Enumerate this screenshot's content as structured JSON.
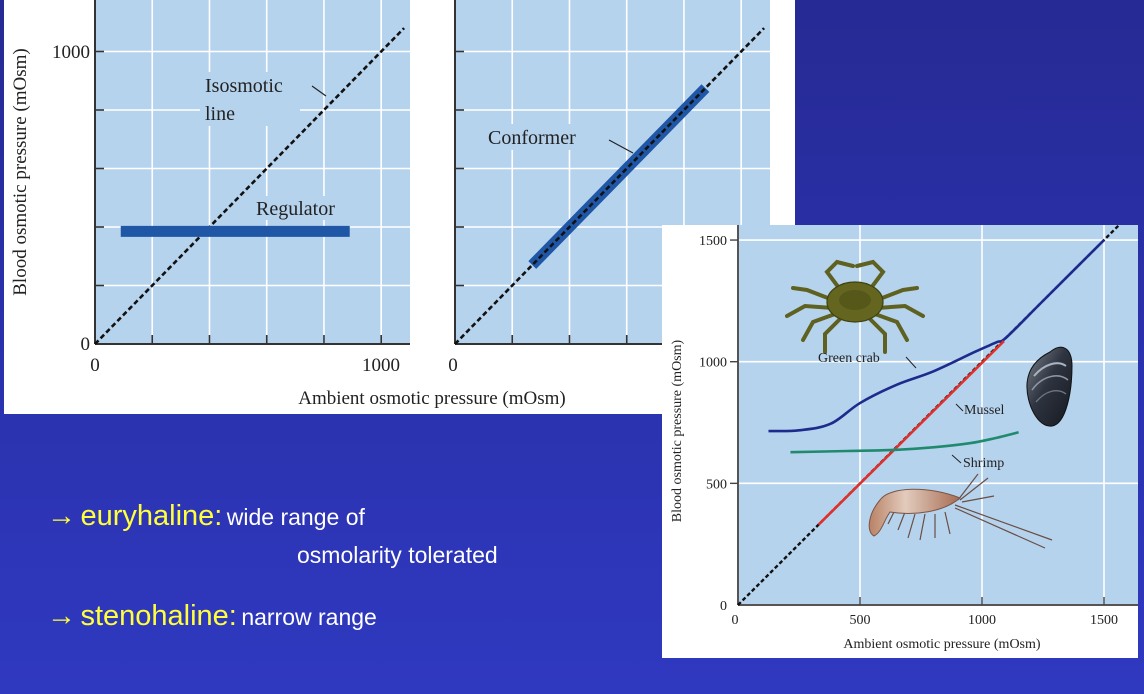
{
  "slide": {
    "background_top": "#262a94",
    "background_bottom": "#2f39c0",
    "bullets": [
      {
        "arrow": "→",
        "term": "euryhaline:",
        "description_line1": "wide range of",
        "description_line2": "osmolarity tolerated"
      },
      {
        "arrow": "→",
        "term": "stenohaline:",
        "description_line1": "narrow range"
      }
    ],
    "term_color": "#ffff3c",
    "description_color": "#ffffff"
  },
  "chart_data": [
    {
      "id": "regulator-chart",
      "type": "line",
      "title": "",
      "xlabel": "",
      "ylabel": "Blood osmotic pressure (mOsm)",
      "xlim": [
        0,
        1100
      ],
      "ylim": [
        0,
        1175
      ],
      "x_tick_labels": [
        "0",
        "1000"
      ],
      "y_tick_labels": [
        "0",
        "1000"
      ],
      "grid": true,
      "series": [
        {
          "name": "Isosmotic line",
          "style": "dashed",
          "color": "#111111",
          "x": [
            0,
            1080
          ],
          "y": [
            0,
            1080
          ]
        },
        {
          "name": "Regulator",
          "style": "thick-bar",
          "color": "#1f56a6",
          "x": [
            90,
            890
          ],
          "y": [
            385,
            385
          ]
        }
      ],
      "annotations": [
        {
          "text_line1": "Isosmotic",
          "text_line2": "line"
        },
        {
          "text": "Regulator"
        }
      ]
    },
    {
      "id": "conformer-chart",
      "type": "line",
      "title": "",
      "xlabel": "Ambient osmotic pressure (mOsm)",
      "ylabel": "",
      "xlim": [
        0,
        1100
      ],
      "ylim": [
        0,
        1175
      ],
      "x_tick_labels": [
        "0"
      ],
      "grid": true,
      "series": [
        {
          "name": "Isosmotic line",
          "style": "dashed",
          "color": "#111111",
          "x": [
            0,
            1080
          ],
          "y": [
            0,
            1080
          ]
        },
        {
          "name": "Conformer",
          "style": "thick-bar",
          "color": "#1f56a6",
          "x": [
            270,
            875
          ],
          "y": [
            270,
            875
          ]
        }
      ],
      "annotations": [
        {
          "text": "Conformer"
        }
      ]
    },
    {
      "id": "species-chart",
      "type": "line",
      "title": "",
      "xlabel": "Ambient osmotic pressure (mOsm)",
      "ylabel": "Blood osmotic pressure (mOsm)",
      "xlim": [
        0,
        1640
      ],
      "ylim": [
        0,
        1560
      ],
      "x_ticks": [
        0,
        500,
        1000,
        1500
      ],
      "x_tick_labels": [
        "0",
        "500",
        "1000",
        "1500"
      ],
      "y_ticks": [
        0,
        500,
        1000,
        1500
      ],
      "y_tick_labels": [
        "0",
        "500",
        "1000",
        "1500"
      ],
      "grid": true,
      "series": [
        {
          "name": "Isosmotic line",
          "style": "dashed",
          "color": "#111111",
          "x": [
            0,
            1560
          ],
          "y": [
            0,
            1560
          ]
        },
        {
          "name": "Green crab",
          "color": "#1c2b8c",
          "x": [
            125,
            250,
            380,
            500,
            650,
            800,
            970,
            1060,
            1100,
            1250,
            1500
          ],
          "y": [
            715,
            718,
            745,
            830,
            905,
            960,
            1040,
            1080,
            1100,
            1250,
            1500
          ]
        },
        {
          "name": "Mussel",
          "color": "#e0302a",
          "x": [
            330,
            1090
          ],
          "y": [
            330,
            1085
          ]
        },
        {
          "name": "Shrimp",
          "color": "#1f8a6e",
          "x": [
            215,
            450,
            650,
            800,
            950,
            1050,
            1150
          ],
          "y": [
            628,
            633,
            638,
            648,
            665,
            685,
            710
          ]
        }
      ],
      "annotations": [
        {
          "text": "Green crab"
        },
        {
          "text": "Mussel"
        },
        {
          "text": "Shrimp"
        }
      ],
      "illustrations": [
        "crab-illustration",
        "mussel-illustration",
        "shrimp-illustration"
      ]
    }
  ]
}
